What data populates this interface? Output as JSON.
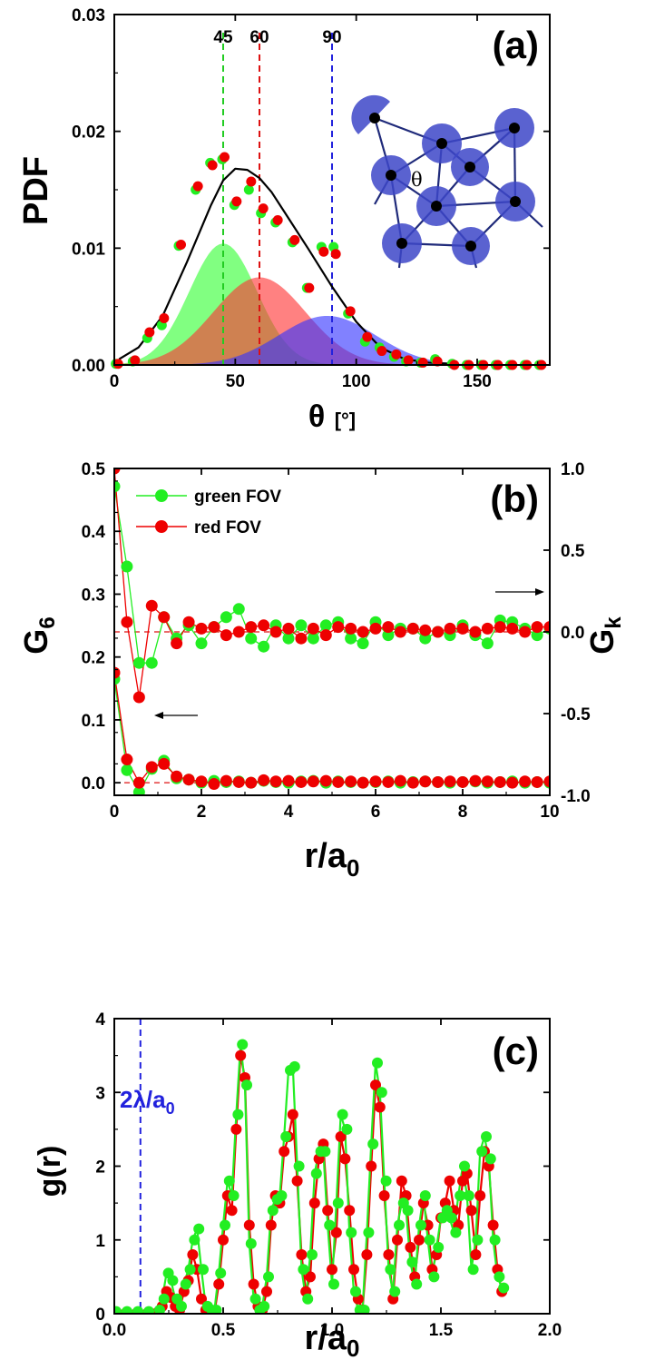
{
  "chart_data": [
    {
      "panel": "(a)",
      "type": "scatter",
      "xlabel": "θ",
      "xunit": "[°]",
      "ylabel": "PDF",
      "xlim": [
        0,
        180
      ],
      "ylim": [
        0,
        0.03
      ],
      "xticks": [
        "0",
        "50",
        "100",
        "150"
      ],
      "yticks": [
        "0.00",
        "0.01",
        "0.02",
        "0.03"
      ],
      "vlines": [
        {
          "x": 45,
          "label": "45",
          "color": "#22cc22"
        },
        {
          "x": 60,
          "label": "60",
          "color": "#dd1111"
        },
        {
          "x": 90,
          "label": "90",
          "color": "#2222dd"
        }
      ],
      "inset_label": "θ",
      "gaussians": [
        {
          "mu": 45,
          "sigma": 14,
          "amp": 0.0104,
          "color": "#33ff33"
        },
        {
          "mu": 60,
          "sigma": 19,
          "amp": 0.0075,
          "color": "#ff3333"
        },
        {
          "mu": 88,
          "sigma": 20,
          "amp": 0.0042,
          "color": "#3333ff"
        }
      ],
      "fit": {
        "x": [
          2,
          10,
          20,
          30,
          40,
          45,
          50,
          55,
          60,
          65,
          70,
          80,
          90,
          100,
          110,
          120,
          130,
          140
        ],
        "y": [
          0.0005,
          0.0015,
          0.0042,
          0.0088,
          0.0137,
          0.0158,
          0.0168,
          0.0167,
          0.016,
          0.0148,
          0.0132,
          0.01,
          0.0067,
          0.0037,
          0.0015,
          0.0005,
          0.0002,
          0.0001
        ]
      },
      "series": [
        {
          "name": "green",
          "color": "#22ee22",
          "x": [
            1,
            8,
            14,
            20,
            27,
            34,
            40,
            45,
            50,
            56,
            61,
            67,
            74,
            80,
            86,
            91,
            97,
            104,
            110,
            116,
            121,
            127,
            133,
            140,
            146,
            152,
            158,
            164,
            170,
            176
          ],
          "y": [
            0.0001,
            0.0003,
            0.0023,
            0.0034,
            0.0102,
            0.015,
            0.0173,
            0.0176,
            0.0137,
            0.015,
            0.013,
            0.0122,
            0.0105,
            0.0066,
            0.0101,
            0.0101,
            0.0044,
            0.002,
            0.0015,
            0.0007,
            0.0003,
            0.0002,
            0.0005,
            0.0001,
            0.0,
            0.0,
            0.0,
            0.0,
            0.0,
            0.0
          ]
        },
        {
          "name": "red",
          "color": "#ee0000",
          "x": [
            1,
            8,
            14,
            20,
            27,
            34,
            40,
            45,
            50,
            56,
            61,
            67,
            74,
            80,
            86,
            91,
            97,
            104,
            110,
            116,
            121,
            127,
            133,
            140,
            146,
            152,
            158,
            164,
            170,
            176
          ],
          "y": [
            0.0001,
            0.0004,
            0.0028,
            0.004,
            0.0103,
            0.0153,
            0.0171,
            0.0178,
            0.014,
            0.0157,
            0.0134,
            0.0124,
            0.0107,
            0.0066,
            0.0097,
            0.0095,
            0.0046,
            0.0024,
            0.0012,
            0.0009,
            0.0004,
            0.0002,
            0.0003,
            0.0,
            0.0,
            0.0,
            0.0,
            0.0,
            0.0,
            0.0
          ]
        }
      ]
    },
    {
      "panel": "(b)",
      "type": "line",
      "xlabel": "r/a",
      "xlabel_sub": "0",
      "ylabel": "G",
      "ylabel_sub": "6",
      "y2label": "G",
      "y2label_sub": "k",
      "xlim": [
        0,
        10
      ],
      "ylim": [
        -0.02,
        0.5
      ],
      "y2lim": [
        -1.0,
        1.0
      ],
      "xticks": [
        "0",
        "2",
        "4",
        "6",
        "8",
        "10"
      ],
      "yticks": [
        "0.0",
        "0.1",
        "0.2",
        "0.3",
        "0.4",
        "0.5"
      ],
      "y2ticks": [
        "-1.0",
        "-0.5",
        "0.0",
        "0.5",
        "1.0"
      ],
      "legend": [
        "green FOV",
        "red FOV"
      ],
      "legend_position": "top-left",
      "series": [
        {
          "name": "green FOV",
          "color": "#22ee22",
          "axis": "y",
          "x": [
            0.0,
            0.29,
            0.57,
            0.86,
            1.14,
            1.43,
            1.71,
            2.0,
            2.29,
            2.57,
            2.86,
            3.14,
            3.43,
            3.71,
            4.0,
            4.29,
            4.57,
            4.86,
            5.14,
            5.43,
            5.71,
            6.0,
            6.29,
            6.57,
            6.86,
            7.14,
            7.43,
            7.71,
            8.0,
            8.29,
            8.57,
            8.86,
            9.14,
            9.43,
            9.71,
            10.0
          ],
          "y": [
            0.165,
            0.02,
            -0.015,
            0.022,
            0.035,
            0.007,
            0.005,
            0.0,
            0.003,
            0.001,
            0.002,
            0.0,
            0.003,
            0.001,
            0.0,
            0.002,
            0.003,
            0.0,
            0.002,
            0.001,
            0.0,
            0.001,
            0.002,
            0.0,
            0.001,
            0.002,
            0.001,
            0.0,
            0.001,
            0.002,
            0.0,
            0.001,
            0.002,
            0.0,
            0.001,
            0.0
          ]
        },
        {
          "name": "red FOV",
          "color": "#ee0000",
          "axis": "y",
          "x": [
            0.0,
            0.29,
            0.57,
            0.86,
            1.14,
            1.43,
            1.71,
            2.0,
            2.29,
            2.57,
            2.86,
            3.14,
            3.43,
            3.71,
            4.0,
            4.29,
            4.57,
            4.86,
            5.14,
            5.43,
            5.71,
            6.0,
            6.29,
            6.57,
            6.86,
            7.14,
            7.43,
            7.71,
            8.0,
            8.29,
            8.57,
            8.86,
            9.14,
            9.43,
            9.71,
            10.0
          ],
          "y": [
            0.175,
            0.037,
            0.0,
            0.025,
            0.03,
            0.01,
            0.005,
            0.002,
            -0.002,
            0.003,
            0.001,
            0.0,
            0.004,
            0.002,
            0.003,
            0.001,
            0.002,
            0.003,
            0.001,
            0.002,
            0.0,
            0.002,
            0.001,
            0.003,
            0.0,
            0.002,
            0.001,
            0.002,
            0.001,
            0.003,
            0.002,
            0.001,
            0.0,
            0.002,
            0.001,
            0.002
          ]
        },
        {
          "name": "green FOV",
          "color": "#22ee22",
          "axis": "y2",
          "x": [
            0.0,
            0.29,
            0.57,
            0.86,
            1.14,
            1.43,
            1.71,
            2.0,
            2.29,
            2.57,
            2.86,
            3.14,
            3.43,
            3.71,
            4.0,
            4.29,
            4.57,
            4.86,
            5.14,
            5.43,
            5.71,
            6.0,
            6.29,
            6.57,
            6.86,
            7.14,
            7.43,
            7.71,
            8.0,
            8.29,
            8.57,
            8.86,
            9.14,
            9.43,
            9.71,
            10.0
          ],
          "y": [
            0.89,
            0.4,
            -0.19,
            -0.19,
            0.09,
            -0.04,
            0.04,
            -0.07,
            0.03,
            0.09,
            0.14,
            -0.04,
            -0.09,
            0.04,
            -0.04,
            0.04,
            -0.04,
            0.04,
            0.06,
            -0.04,
            -0.07,
            0.06,
            -0.02,
            0.02,
            0.02,
            -0.04,
            0.0,
            -0.02,
            0.04,
            -0.02,
            -0.07,
            0.07,
            0.06,
            0.02,
            -0.02,
            0.02
          ]
        },
        {
          "name": "red FOV",
          "color": "#ee0000",
          "axis": "y2",
          "x": [
            0.0,
            0.29,
            0.57,
            0.86,
            1.14,
            1.43,
            1.71,
            2.0,
            2.29,
            2.57,
            2.86,
            3.14,
            3.43,
            3.71,
            4.0,
            4.29,
            4.57,
            4.86,
            5.14,
            5.43,
            5.71,
            6.0,
            6.29,
            6.57,
            6.86,
            7.14,
            7.43,
            7.71,
            8.0,
            8.29,
            8.57,
            8.86,
            9.14,
            9.43,
            9.71,
            10.0
          ],
          "y": [
            1.0,
            0.06,
            -0.4,
            0.16,
            0.09,
            -0.07,
            0.06,
            0.02,
            0.03,
            -0.02,
            0.0,
            0.03,
            0.04,
            0.0,
            0.02,
            -0.04,
            0.02,
            -0.02,
            0.03,
            0.02,
            0.0,
            0.02,
            0.03,
            0.0,
            0.02,
            0.01,
            0.0,
            0.02,
            0.02,
            0.0,
            0.02,
            0.03,
            0.02,
            0.0,
            0.03,
            0.03
          ]
        }
      ],
      "hlines": [
        {
          "axis": "y",
          "y": 0.0,
          "color": "#dd1111"
        },
        {
          "axis": "y2",
          "y": 0.0,
          "color": "#dd1111"
        }
      ],
      "arrows": [
        {
          "direction": "left",
          "axis": "y"
        },
        {
          "direction": "right",
          "axis": "y2"
        }
      ]
    },
    {
      "panel": "(c)",
      "type": "line",
      "xlabel": "r/a",
      "xlabel_sub": "0",
      "ylabel": "g(r)",
      "xlim": [
        0.0,
        2.0
      ],
      "ylim": [
        0,
        4
      ],
      "xticks": [
        "0.0",
        "0.5",
        "1.0",
        "1.5",
        "2.0"
      ],
      "yticks": [
        "0",
        "1",
        "2",
        "3",
        "4"
      ],
      "vline": {
        "x": 0.12,
        "label_main": "2λ/a",
        "label_sub": "0",
        "color": "#2222dd"
      },
      "series": [
        {
          "name": "red",
          "color": "#ee0000",
          "x": [
            0.0,
            0.05,
            0.1,
            0.15,
            0.2,
            0.22,
            0.24,
            0.26,
            0.28,
            0.3,
            0.32,
            0.34,
            0.36,
            0.38,
            0.4,
            0.42,
            0.44,
            0.46,
            0.48,
            0.5,
            0.52,
            0.54,
            0.56,
            0.58,
            0.6,
            0.62,
            0.64,
            0.66,
            0.68,
            0.7,
            0.72,
            0.74,
            0.76,
            0.78,
            0.8,
            0.82,
            0.84,
            0.86,
            0.88,
            0.9,
            0.92,
            0.94,
            0.96,
            0.98,
            1.0,
            1.02,
            1.04,
            1.06,
            1.08,
            1.1,
            1.12,
            1.14,
            1.16,
            1.18,
            1.2,
            1.22,
            1.24,
            1.26,
            1.28,
            1.3,
            1.32,
            1.34,
            1.36,
            1.38,
            1.4,
            1.42,
            1.44,
            1.46,
            1.48,
            1.5,
            1.52,
            1.54,
            1.56,
            1.58,
            1.6,
            1.62,
            1.64,
            1.66,
            1.68,
            1.7,
            1.72,
            1.74,
            1.76,
            1.78
          ],
          "y": [
            0.0,
            0.0,
            0.0,
            0.0,
            0.02,
            0.1,
            0.3,
            0.22,
            0.1,
            0.05,
            0.3,
            0.45,
            0.8,
            0.6,
            0.2,
            0.05,
            0.02,
            0.01,
            0.4,
            1.0,
            1.6,
            1.4,
            2.5,
            3.5,
            3.2,
            1.2,
            0.4,
            0.1,
            0.05,
            0.3,
            1.2,
            1.6,
            1.5,
            2.2,
            2.4,
            2.7,
            1.8,
            0.8,
            0.3,
            0.5,
            1.5,
            2.1,
            2.3,
            1.4,
            0.6,
            1.1,
            2.4,
            2.1,
            1.4,
            0.6,
            0.2,
            0.05,
            0.8,
            2.0,
            3.1,
            2.8,
            1.6,
            0.8,
            0.2,
            1.0,
            1.8,
            1.6,
            0.9,
            0.5,
            1.0,
            1.5,
            1.2,
            0.6,
            0.8,
            1.3,
            1.5,
            1.8,
            1.4,
            1.2,
            1.8,
            1.9,
            1.4,
            0.8,
            1.6,
            2.2,
            2.0,
            1.2,
            0.6,
            0.3
          ]
        },
        {
          "name": "green",
          "color": "#22ee22",
          "x": [
            0.0,
            0.05,
            0.1,
            0.15,
            0.2,
            0.22,
            0.24,
            0.26,
            0.28,
            0.3,
            0.32,
            0.34,
            0.36,
            0.38,
            0.4,
            0.42,
            0.44,
            0.46,
            0.48,
            0.5,
            0.52,
            0.54,
            0.56,
            0.58,
            0.6,
            0.62,
            0.64,
            0.66,
            0.68,
            0.7,
            0.72,
            0.74,
            0.76,
            0.78,
            0.8,
            0.82,
            0.84,
            0.86,
            0.88,
            0.9,
            0.92,
            0.94,
            0.96,
            0.98,
            1.0,
            1.02,
            1.04,
            1.06,
            1.08,
            1.1,
            1.12,
            1.14,
            1.16,
            1.18,
            1.2,
            1.22,
            1.24,
            1.26,
            1.28,
            1.3,
            1.32,
            1.34,
            1.36,
            1.38,
            1.4,
            1.42,
            1.44,
            1.46,
            1.48,
            1.5,
            1.52,
            1.54,
            1.56,
            1.58,
            1.6,
            1.62,
            1.64,
            1.66,
            1.68,
            1.7,
            1.72,
            1.74,
            1.76,
            1.78
          ],
          "y": [
            0.03,
            0.03,
            0.03,
            0.03,
            0.05,
            0.2,
            0.55,
            0.45,
            0.2,
            0.1,
            0.4,
            0.6,
            1.0,
            1.15,
            0.6,
            0.1,
            0.05,
            0.05,
            0.55,
            1.2,
            1.8,
            1.6,
            2.7,
            3.65,
            3.1,
            0.95,
            0.2,
            0.05,
            0.1,
            0.5,
            1.4,
            1.55,
            1.6,
            2.4,
            3.3,
            3.35,
            2.0,
            0.6,
            0.2,
            0.8,
            1.9,
            2.2,
            2.2,
            1.2,
            0.4,
            1.5,
            2.7,
            2.5,
            1.1,
            0.3,
            0.05,
            0.05,
            1.1,
            2.3,
            3.4,
            3.0,
            1.8,
            0.6,
            0.3,
            1.2,
            1.5,
            1.4,
            0.7,
            0.4,
            1.2,
            1.6,
            1.0,
            0.5,
            0.9,
            1.3,
            1.4,
            1.3,
            1.1,
            1.6,
            2.0,
            1.6,
            0.6,
            1.0,
            2.2,
            2.4,
            2.1,
            1.0,
            0.5,
            0.35
          ]
        }
      ]
    }
  ]
}
